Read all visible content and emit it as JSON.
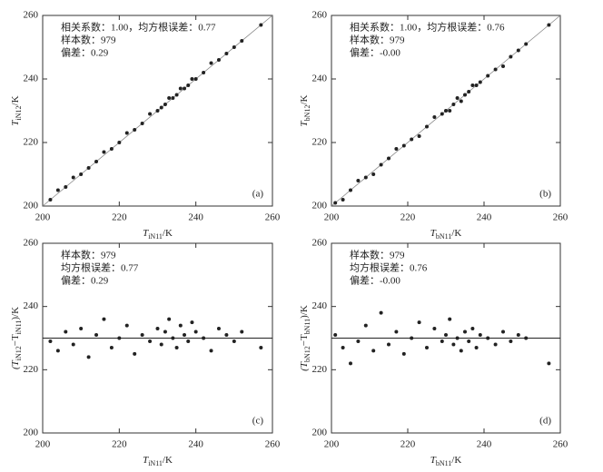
{
  "chart_data": [
    {
      "type": "scatter",
      "panel_label": "(a)",
      "annotations": [
        "相关系数：1.00，均方根误差：0.77",
        "样本数：979",
        "偏差：0.29"
      ],
      "xlabel": [
        "T",
        "iN11",
        "/K"
      ],
      "ylabel": [
        "T",
        "iN12",
        "/K"
      ],
      "xlim": [
        200,
        260
      ],
      "ylim": [
        200,
        260
      ],
      "xticks": [
        200,
        220,
        240,
        260
      ],
      "yticks": [
        200,
        220,
        240,
        260
      ],
      "diagonal": true,
      "color": "#222222",
      "x": [
        202,
        204,
        206,
        208,
        210,
        212,
        214,
        216,
        218,
        220,
        222,
        224,
        226,
        228,
        230,
        231,
        232,
        233,
        234,
        235,
        236,
        237,
        238,
        239,
        240,
        242,
        244,
        246,
        248,
        250,
        252,
        257
      ],
      "values": [
        202,
        205,
        206,
        209,
        210,
        212,
        214,
        217,
        218,
        220,
        223,
        224,
        226,
        229,
        230,
        231,
        232,
        234,
        234,
        235,
        237,
        237,
        238,
        240,
        240,
        242,
        245,
        246,
        248,
        250,
        252,
        257
      ]
    },
    {
      "type": "scatter",
      "panel_label": "(b)",
      "annotations": [
        "相关系数：1.00，均方根误差：0.76",
        "样本数：979",
        "偏差：-0.00"
      ],
      "xlabel": [
        "T",
        "bN11",
        "/K"
      ],
      "ylabel": [
        "T",
        "bN12",
        "/K"
      ],
      "xlim": [
        200,
        260
      ],
      "ylim": [
        200,
        260
      ],
      "xticks": [
        200,
        220,
        240,
        260
      ],
      "yticks": [
        200,
        220,
        240,
        260
      ],
      "diagonal": true,
      "color": "#222222",
      "x": [
        201,
        203,
        205,
        207,
        209,
        211,
        213,
        215,
        217,
        219,
        221,
        223,
        225,
        227,
        229,
        230,
        231,
        232,
        233,
        234,
        235,
        236,
        237,
        238,
        239,
        241,
        243,
        245,
        247,
        249,
        251,
        257
      ],
      "values": [
        201,
        202,
        205,
        208,
        209,
        210,
        213,
        215,
        218,
        219,
        221,
        222,
        225,
        228,
        229,
        230,
        230,
        232,
        234,
        233,
        235,
        236,
        238,
        238,
        239,
        241,
        243,
        244,
        247,
        249,
        251,
        257
      ]
    },
    {
      "type": "scatter",
      "panel_label": "(c)",
      "annotations": [
        "样本数：979",
        "均方根误差：0.77",
        "偏差：0.29"
      ],
      "xlabel": [
        "T",
        "iN11",
        "/K"
      ],
      "ylabel": [
        "(T",
        "iN12",
        "−T",
        "iN11",
        ")/K"
      ],
      "xlim": [
        200,
        260
      ],
      "ylim": [
        200,
        260
      ],
      "xticks": [
        200,
        220,
        240,
        260
      ],
      "yticks": [
        200,
        220,
        240,
        260
      ],
      "hline": 230,
      "color": "#222222",
      "x": [
        202,
        204,
        206,
        208,
        210,
        212,
        214,
        216,
        218,
        220,
        222,
        224,
        226,
        228,
        230,
        231,
        232,
        233,
        234,
        235,
        236,
        237,
        238,
        239,
        240,
        242,
        244,
        246,
        248,
        250,
        252,
        257
      ],
      "values": [
        229,
        226,
        232,
        228,
        233,
        224,
        231,
        236,
        227,
        230,
        234,
        225,
        231,
        229,
        233,
        228,
        232,
        236,
        230,
        227,
        234,
        231,
        229,
        235,
        232,
        230,
        226,
        233,
        231,
        229,
        232,
        227
      ]
    },
    {
      "type": "scatter",
      "panel_label": "(d)",
      "annotations": [
        "样本数：979",
        "均方根误差：0.76",
        "偏差：-0.00"
      ],
      "xlabel": [
        "T",
        "bN11",
        "/K"
      ],
      "ylabel": [
        "(T",
        "bN12",
        "−T",
        "bN11",
        ")/K"
      ],
      "xlim": [
        200,
        260
      ],
      "ylim": [
        200,
        260
      ],
      "xticks": [
        200,
        220,
        240,
        260
      ],
      "yticks": [
        200,
        220,
        240,
        260
      ],
      "hline": 230,
      "color": "#222222",
      "x": [
        201,
        203,
        205,
        207,
        209,
        211,
        213,
        215,
        217,
        219,
        221,
        223,
        225,
        227,
        229,
        230,
        231,
        232,
        233,
        234,
        235,
        236,
        237,
        238,
        239,
        241,
        243,
        245,
        247,
        249,
        251,
        257
      ],
      "values": [
        231,
        227,
        222,
        229,
        234,
        226,
        238,
        228,
        232,
        225,
        230,
        235,
        227,
        233,
        229,
        231,
        236,
        228,
        230,
        226,
        232,
        229,
        233,
        227,
        231,
        230,
        228,
        232,
        229,
        231,
        230,
        222
      ]
    }
  ]
}
